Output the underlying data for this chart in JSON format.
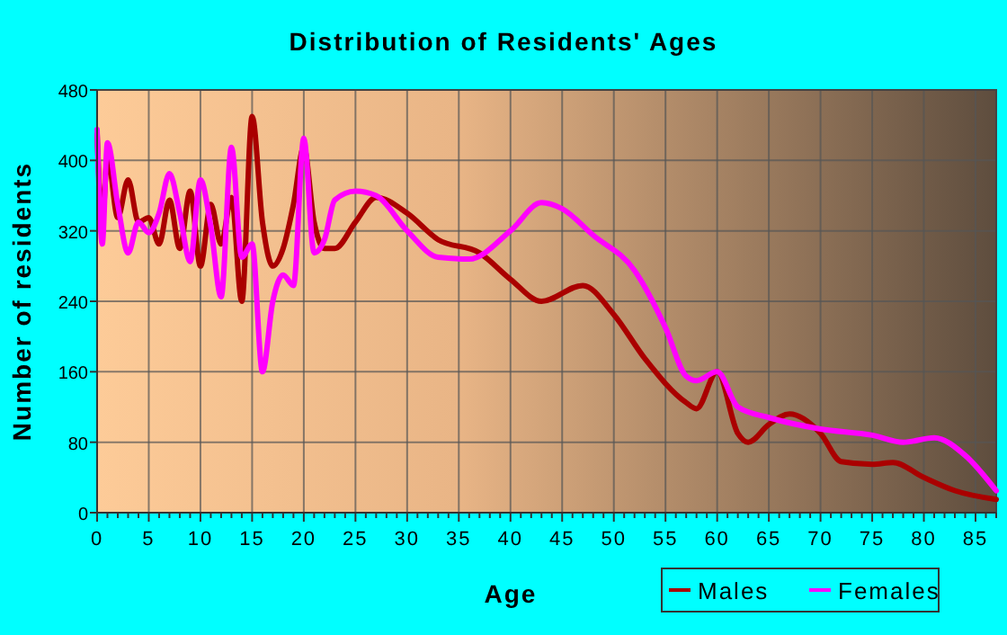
{
  "chart_data": {
    "type": "line",
    "title": "Distribution of Residents' Ages",
    "xlabel": "Age",
    "ylabel": "Number of residents",
    "xlim": [
      0,
      87
    ],
    "xticks": [
      0,
      5,
      10,
      15,
      20,
      25,
      30,
      35,
      40,
      45,
      50,
      55,
      60,
      65,
      70,
      75,
      80,
      85
    ],
    "ylim": [
      0,
      480
    ],
    "yticks": [
      0,
      80,
      160,
      240,
      320,
      400,
      480
    ],
    "grid": true,
    "legend": "bottom right",
    "series": [
      {
        "name": "Males",
        "color": "#aa0000",
        "x": [
          0,
          0.5,
          1,
          2,
          3,
          4,
          5,
          6,
          7,
          8,
          9,
          10,
          11,
          12,
          13,
          14,
          15,
          16,
          17,
          18,
          19,
          20,
          21,
          22,
          23,
          25,
          27,
          30,
          33,
          37,
          40,
          43,
          47,
          50,
          53,
          57,
          58,
          60,
          62,
          63,
          65,
          67,
          70,
          72,
          75,
          77,
          80,
          83,
          87
        ],
        "values": [
          430,
          330,
          405,
          335,
          378,
          330,
          335,
          305,
          355,
          300,
          365,
          280,
          350,
          305,
          358,
          240,
          450,
          330,
          280,
          300,
          350,
          415,
          330,
          300,
          300,
          330,
          358,
          340,
          310,
          295,
          265,
          240,
          258,
          225,
          175,
          125,
          118,
          160,
          90,
          80,
          100,
          112,
          90,
          58,
          55,
          57,
          40,
          25,
          15
        ]
      },
      {
        "name": "Females",
        "color": "#ff00ff",
        "x": [
          0,
          0.5,
          1,
          2,
          3,
          4,
          5,
          6,
          7,
          8,
          9,
          10,
          11,
          12,
          13,
          14,
          15,
          16,
          17,
          18,
          19,
          20,
          21,
          22,
          23,
          25,
          27,
          30,
          33,
          36,
          40,
          43,
          45,
          48,
          52,
          55,
          57,
          58,
          60,
          62,
          65,
          70,
          75,
          78,
          81,
          84,
          87
        ],
        "values": [
          435,
          305,
          420,
          350,
          295,
          330,
          318,
          340,
          385,
          340,
          285,
          378,
          325,
          245,
          415,
          290,
          305,
          160,
          240,
          270,
          258,
          425,
          295,
          310,
          355,
          365,
          360,
          320,
          290,
          288,
          320,
          352,
          345,
          315,
          275,
          210,
          155,
          150,
          160,
          120,
          108,
          95,
          88,
          80,
          85,
          65,
          25
        ]
      }
    ]
  }
}
